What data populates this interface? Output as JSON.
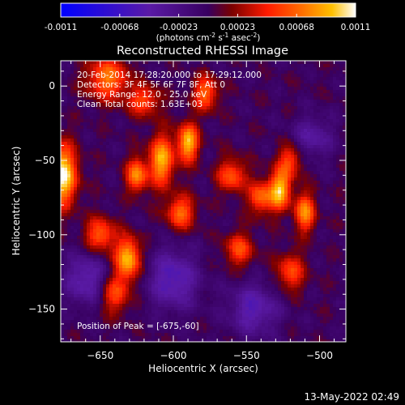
{
  "chart_data": {
    "type": "heatmap",
    "title": "Reconstructed RHESSI Image",
    "xlabel": "Heliocentric X (arcsec)",
    "ylabel": "Heliocentric Y (arcsec)",
    "xlim": [
      -677,
      -482
    ],
    "ylim": [
      -172,
      17
    ],
    "x_ticks": [
      -650,
      -600,
      -550,
      -500
    ],
    "y_ticks": [
      -150,
      -100,
      -50,
      0
    ],
    "colorbar": {
      "range": [
        -0.0011,
        0.0011
      ],
      "ticks": [
        "-0.0011",
        "-0.00068",
        "-0.00023",
        "0.00023",
        "0.00068",
        "0.0011"
      ],
      "label_prefix": "(photons cm",
      "label_sup1": "-2",
      "label_mid1": " s",
      "label_sup2": "-1",
      "label_mid2": " asec",
      "label_sup3": "-2",
      "label_suffix": ")"
    },
    "annotations": [
      "20-Feb-2014 17:28:20.000 to 17:29:12.000",
      "Detectors: 3F 4F 5F 6F 7F 8F, Att 0",
      "Energy Range: 12.0 - 25.0 keV",
      "Clean     Total counts: 1.63E+03"
    ],
    "peak_label": "Position of Peak = [-675,-60]",
    "peak": [
      -675,
      -60
    ],
    "sources": [
      {
        "x": -676,
        "y": -60,
        "amp": 1.0,
        "sx": 7,
        "sy": 14
      },
      {
        "x": -631,
        "y": -116,
        "amp": 0.85,
        "sx": 6,
        "sy": 10
      },
      {
        "x": -625,
        "y": -60,
        "amp": 0.7,
        "sx": 5,
        "sy": 8
      },
      {
        "x": -608,
        "y": -50,
        "amp": 0.8,
        "sx": 6,
        "sy": 12
      },
      {
        "x": -590,
        "y": -38,
        "amp": 0.85,
        "sx": 5,
        "sy": 9
      },
      {
        "x": -595,
        "y": -85,
        "amp": 0.6,
        "sx": 7,
        "sy": 8
      },
      {
        "x": -578,
        "y": -5,
        "amp": 0.6,
        "sx": 6,
        "sy": 8
      },
      {
        "x": -560,
        "y": -60,
        "amp": 0.55,
        "sx": 7,
        "sy": 8
      },
      {
        "x": -540,
        "y": -75,
        "amp": 0.6,
        "sx": 6,
        "sy": 8
      },
      {
        "x": -527,
        "y": -70,
        "amp": 0.85,
        "sx": 5,
        "sy": 9
      },
      {
        "x": -510,
        "y": -85,
        "amp": 0.7,
        "sx": 5,
        "sy": 9
      },
      {
        "x": -520,
        "y": -50,
        "amp": 0.5,
        "sx": 6,
        "sy": 8
      },
      {
        "x": -555,
        "y": -110,
        "amp": 0.5,
        "sx": 7,
        "sy": 8
      },
      {
        "x": -645,
        "y": 5,
        "amp": 0.65,
        "sx": 10,
        "sy": 10
      },
      {
        "x": -620,
        "y": -10,
        "amp": 0.5,
        "sx": 8,
        "sy": 7
      },
      {
        "x": -650,
        "y": -100,
        "amp": 0.6,
        "sx": 7,
        "sy": 8
      },
      {
        "x": -640,
        "y": -140,
        "amp": 0.5,
        "sx": 7,
        "sy": 9
      },
      {
        "x": -520,
        "y": -125,
        "amp": 0.5,
        "sx": 7,
        "sy": 9
      },
      {
        "x": -600,
        "y": -130,
        "amp": -0.5,
        "sx": 12,
        "sy": 14
      },
      {
        "x": -660,
        "y": -130,
        "amp": -0.45,
        "sx": 10,
        "sy": 12
      },
      {
        "x": -545,
        "y": -150,
        "amp": -0.45,
        "sx": 12,
        "sy": 12
      },
      {
        "x": -505,
        "y": -35,
        "amp": -0.35,
        "sx": 10,
        "sy": 10
      }
    ],
    "colormap": [
      [
        0.0,
        "#0000ff"
      ],
      [
        0.3,
        "#5a1aa6"
      ],
      [
        0.5,
        "#380060"
      ],
      [
        0.58,
        "#7a0000"
      ],
      [
        0.7,
        "#ff1a00"
      ],
      [
        0.82,
        "#ff7000"
      ],
      [
        0.92,
        "#ffc000"
      ],
      [
        1.0,
        "#ffffff"
      ]
    ]
  },
  "timestamp": "13-May-2022 02:49"
}
